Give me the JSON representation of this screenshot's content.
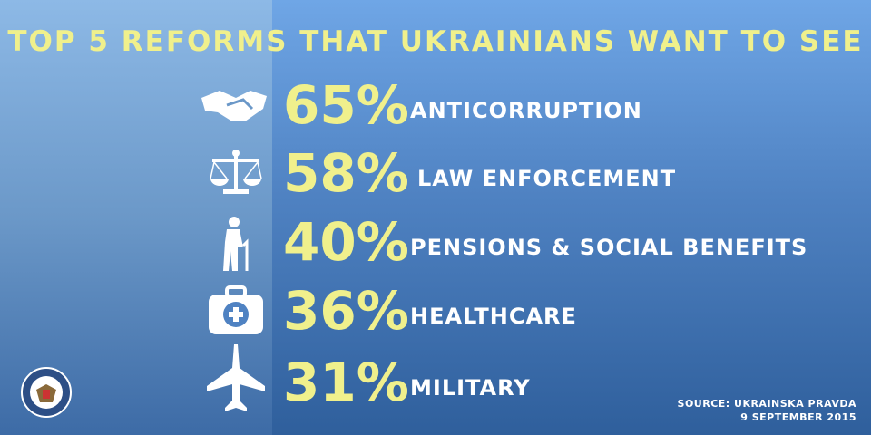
{
  "title": "TOP 5 REFORMS THAT UKRAINIANS WANT TO SEE",
  "items": [
    {
      "percent": "65%",
      "label": "ANTICORRUPTION"
    },
    {
      "percent": "58%",
      "label": "LAW ENFORCEMENT"
    },
    {
      "percent": "40%",
      "label": "PENSIONS & SOCIAL BENEFITS"
    },
    {
      "percent": "36%",
      "label": "HEALTHCARE"
    },
    {
      "percent": "31%",
      "label": "MILITARY"
    }
  ],
  "source": {
    "name": "SOURCE: UKRAINSKA PRAVDA",
    "date": "9 SEPTEMBER 2015"
  }
}
